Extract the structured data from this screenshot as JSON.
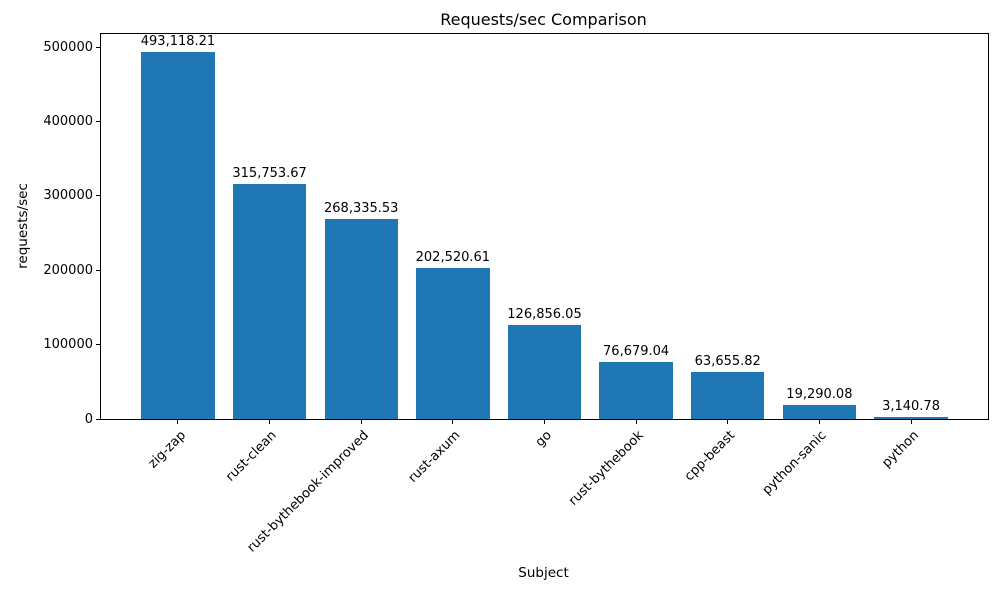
{
  "chart_data": {
    "type": "bar",
    "title": "Requests/sec Comparison",
    "xlabel": "Subject",
    "ylabel": "requests/sec",
    "categories": [
      "zig-zap",
      "rust-clean",
      "rust-bythebook-improved",
      "rust-axum",
      "go",
      "rust-bythebook",
      "cpp-beast",
      "python-sanic",
      "python"
    ],
    "values": [
      493118.21,
      315753.67,
      268335.53,
      202520.61,
      126856.05,
      76679.04,
      63655.82,
      19290.08,
      3140.78
    ],
    "value_labels": [
      "493,118.21",
      "315,753.67",
      "268,335.53",
      "202,520.61",
      "126,856.05",
      "76,679.04",
      "63,655.82",
      "19,290.08",
      "3,140.78"
    ],
    "yticks": [
      0,
      100000,
      200000,
      300000,
      400000,
      500000
    ],
    "ylim": [
      0,
      517774
    ],
    "xtick_rotation_deg": 45,
    "bar_color": "#1f77b4",
    "bar_width_fraction": 0.8,
    "grid": false,
    "legend": null,
    "background_color": "#ffffff",
    "text_color": "#000000"
  }
}
